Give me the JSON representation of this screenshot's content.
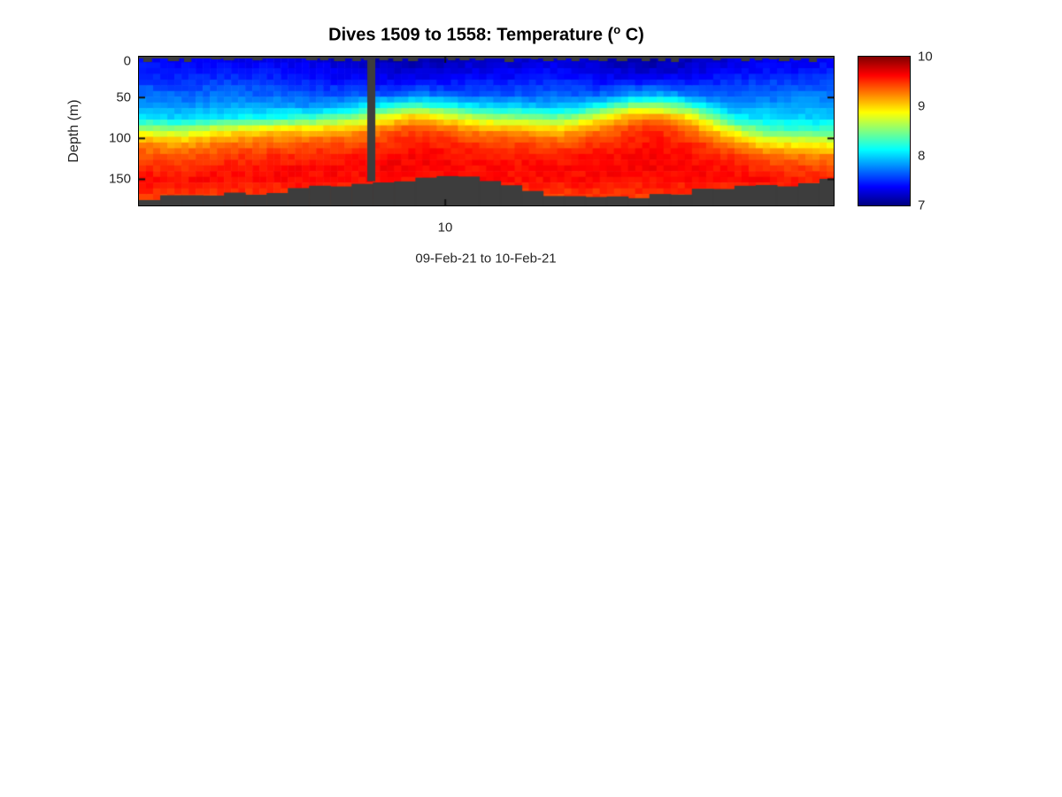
{
  "figure": {
    "background": "#ffffff",
    "title": {
      "prefix": "Dives 1509 to 1558: Temperature (",
      "superscript": "o",
      "suffix": " C)"
    },
    "x_axis": {
      "label": "09-Feb-21 to 10-Feb-21",
      "tick_labels": [
        {
          "label": "10",
          "frac": 0.441
        }
      ]
    },
    "y_axis": {
      "label": "Depth (m)",
      "ticks": [
        {
          "label": "0",
          "depth": 0
        },
        {
          "label": "50",
          "depth": 50
        },
        {
          "label": "100",
          "depth": 100
        },
        {
          "label": "150",
          "depth": 150
        }
      ],
      "range_m": [
        0,
        182
      ]
    },
    "colorbar": {
      "colormap": "jet",
      "min": 7,
      "max": 10,
      "ticks": [
        "10",
        "9",
        "8",
        "7"
      ],
      "tick_values": [
        10,
        9,
        8,
        7
      ]
    },
    "colors": {
      "no_data_gray": "#3d3d3d",
      "axis_text": "#262626",
      "axis_line": "#000000"
    }
  },
  "chart_data": {
    "type": "heatmap",
    "title": "Dives 1509 to 1558: Temperature (° C)",
    "xlabel": "09-Feb-21 to 10-Feb-21",
    "ylabel": "Depth (m)",
    "dive_range": [
      1509,
      1558
    ],
    "n_dives": 50,
    "date_span": [
      "09-Feb-21",
      "10-Feb-21"
    ],
    "x_tick": {
      "label": "10",
      "frac": 0.441
    },
    "depth_range_m": [
      0,
      182
    ],
    "temp_range_c": [
      7,
      10
    ],
    "colormap": "jet",
    "grid_off": true,
    "legend": "colorbar-right",
    "depth_levels_m": [
      0,
      15,
      30,
      45,
      60,
      75,
      90,
      105,
      120,
      135,
      150,
      165,
      180
    ],
    "columns": [
      {
        "f": 0.0,
        "bottom_depth_m": 174,
        "temps_c": [
          7.35,
          7.45,
          7.55,
          7.7,
          7.85,
          8.05,
          8.7,
          9.2,
          9.4,
          9.5,
          9.6,
          9.5,
          9.4
        ]
      },
      {
        "f": 0.06,
        "bottom_depth_m": 172,
        "temps_c": [
          7.3,
          7.4,
          7.5,
          7.65,
          7.8,
          8.0,
          8.6,
          9.1,
          9.35,
          9.5,
          9.6,
          9.5,
          9.4
        ]
      },
      {
        "f": 0.12,
        "bottom_depth_m": 170,
        "temps_c": [
          7.3,
          7.4,
          7.55,
          7.7,
          7.85,
          8.1,
          8.85,
          9.25,
          9.45,
          9.55,
          9.6,
          9.5,
          9.4
        ]
      },
      {
        "f": 0.19,
        "bottom_depth_m": 167,
        "temps_c": [
          7.3,
          7.4,
          7.5,
          7.65,
          7.85,
          8.2,
          9.0,
          9.3,
          9.5,
          9.6,
          9.6,
          9.5,
          9.4
        ]
      },
      {
        "f": 0.25,
        "bottom_depth_m": 162,
        "temps_c": [
          7.25,
          7.35,
          7.45,
          7.6,
          7.8,
          8.3,
          9.05,
          9.35,
          9.5,
          9.6,
          9.62,
          9.5,
          9.4
        ]
      },
      {
        "f": 0.3,
        "bottom_depth_m": 155,
        "temps_c": [
          7.2,
          7.3,
          7.4,
          7.6,
          7.95,
          8.5,
          9.1,
          9.4,
          9.55,
          9.62,
          9.6,
          9.5,
          9.4
        ]
      },
      {
        "f": 0.37,
        "bottom_depth_m": 150,
        "temps_c": [
          7.1,
          7.2,
          7.35,
          7.6,
          8.2,
          8.95,
          9.35,
          9.5,
          9.6,
          9.65,
          9.6,
          9.5,
          9.4
        ]
      },
      {
        "f": 0.4,
        "bottom_depth_m": 149,
        "temps_c": [
          7.1,
          7.2,
          7.4,
          7.7,
          8.35,
          9.1,
          9.45,
          9.55,
          9.62,
          9.65,
          9.6,
          9.5,
          9.4
        ]
      },
      {
        "f": 0.45,
        "bottom_depth_m": 148,
        "temps_c": [
          7.15,
          7.25,
          7.4,
          7.65,
          8.15,
          8.85,
          9.3,
          9.5,
          9.6,
          9.62,
          9.6,
          9.5,
          9.4
        ]
      },
      {
        "f": 0.49,
        "bottom_depth_m": 150,
        "temps_c": [
          7.2,
          7.3,
          7.45,
          7.6,
          8.0,
          8.65,
          9.2,
          9.45,
          9.55,
          9.6,
          9.6,
          9.5,
          9.4
        ]
      },
      {
        "f": 0.55,
        "bottom_depth_m": 163,
        "temps_c": [
          7.2,
          7.3,
          7.45,
          7.6,
          7.95,
          8.55,
          9.15,
          9.4,
          9.55,
          9.6,
          9.6,
          9.5,
          9.4
        ]
      },
      {
        "f": 0.6,
        "bottom_depth_m": 169,
        "temps_c": [
          7.25,
          7.35,
          7.5,
          7.65,
          7.9,
          8.45,
          9.05,
          9.35,
          9.5,
          9.6,
          9.6,
          9.5,
          9.4
        ]
      },
      {
        "f": 0.63,
        "bottom_depth_m": 171,
        "temps_c": [
          7.2,
          7.3,
          7.45,
          7.6,
          7.95,
          8.6,
          9.15,
          9.4,
          9.55,
          9.6,
          9.6,
          9.5,
          9.4
        ]
      },
      {
        "f": 0.67,
        "bottom_depth_m": 170,
        "temps_c": [
          7.15,
          7.25,
          7.4,
          7.65,
          8.2,
          8.9,
          9.3,
          9.5,
          9.6,
          9.62,
          9.6,
          9.5,
          9.4
        ]
      },
      {
        "f": 0.71,
        "bottom_depth_m": 172,
        "temps_c": [
          7.1,
          7.2,
          7.4,
          7.8,
          8.5,
          9.2,
          9.45,
          9.55,
          9.62,
          9.65,
          9.6,
          9.5,
          9.4
        ]
      },
      {
        "f": 0.75,
        "bottom_depth_m": 168,
        "temps_c": [
          7.1,
          7.2,
          7.45,
          7.85,
          8.55,
          9.25,
          9.5,
          9.6,
          9.62,
          9.65,
          9.6,
          9.5,
          9.4
        ]
      },
      {
        "f": 0.79,
        "bottom_depth_m": 166,
        "temps_c": [
          7.15,
          7.25,
          7.4,
          7.7,
          8.3,
          9.0,
          9.35,
          9.5,
          9.6,
          9.62,
          9.6,
          9.5,
          9.4
        ]
      },
      {
        "f": 0.82,
        "bottom_depth_m": 160,
        "temps_c": [
          7.2,
          7.3,
          7.45,
          7.65,
          8.0,
          8.6,
          9.1,
          9.4,
          9.55,
          9.6,
          9.6,
          9.5,
          9.4
        ]
      },
      {
        "f": 0.86,
        "bottom_depth_m": 161,
        "temps_c": [
          7.25,
          7.35,
          7.5,
          7.6,
          7.8,
          8.1,
          8.7,
          9.2,
          9.45,
          9.55,
          9.6,
          9.5,
          9.4
        ]
      },
      {
        "f": 0.9,
        "bottom_depth_m": 160,
        "temps_c": [
          7.3,
          7.4,
          7.55,
          7.65,
          7.85,
          8.05,
          8.4,
          8.9,
          9.3,
          9.5,
          9.6,
          9.5,
          9.4
        ]
      },
      {
        "f": 0.95,
        "bottom_depth_m": 158,
        "temps_c": [
          7.3,
          7.4,
          7.55,
          7.7,
          7.85,
          8.0,
          8.3,
          8.85,
          9.25,
          9.45,
          9.55,
          9.5,
          9.4
        ]
      },
      {
        "f": 1.0,
        "bottom_depth_m": 150,
        "temps_c": [
          7.35,
          7.45,
          7.6,
          7.7,
          7.85,
          8.0,
          8.35,
          8.8,
          9.2,
          9.4,
          9.5,
          9.45,
          9.4
        ]
      }
    ],
    "missing_dive_gap": {
      "f_start": 0.3287,
      "f_end": 0.3402,
      "max_depth_m": 148
    },
    "seafloor_color": "#3d3d3d",
    "surface_gap_strip": true
  }
}
